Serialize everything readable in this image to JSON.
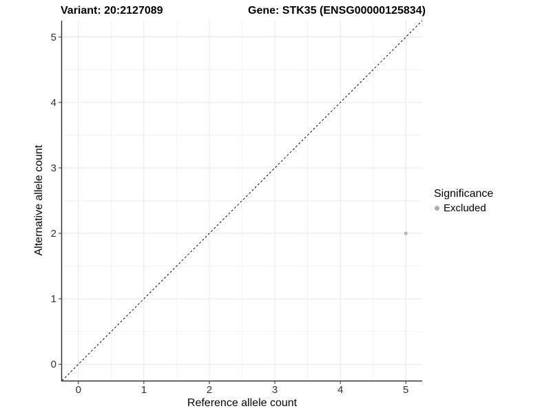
{
  "figure": {
    "title_left": "Variant: 20:2127089",
    "title_right": "Gene: STK35 (ENSG00000125834)"
  },
  "chart_data": {
    "type": "scatter",
    "title_left": "Variant: 20:2127089",
    "title_right": "Gene: STK35 (ENSG00000125834)",
    "xlabel": "Reference allele count",
    "ylabel": "Alternative allele count",
    "xlim": [
      -0.25,
      5.25
    ],
    "ylim": [
      -0.25,
      5.25
    ],
    "x_ticks": [
      0,
      1,
      2,
      3,
      4,
      5
    ],
    "y_ticks": [
      0,
      1,
      2,
      3,
      4,
      5
    ],
    "x_minor_ticks": [
      0.5,
      1.5,
      2.5,
      3.5,
      4.5
    ],
    "y_minor_ticks": [
      0.5,
      1.5,
      2.5,
      3.5,
      4.5
    ],
    "grid": "major+minor",
    "reference_line": {
      "kind": "identity y=x",
      "style": "dashed",
      "color": "#000000",
      "x1": -0.25,
      "y1": -0.25,
      "x2": 5.25,
      "y2": 5.25
    },
    "series": [
      {
        "name": "Excluded",
        "color": "#b5b5b5",
        "points": [
          {
            "x": 5,
            "y": 2
          }
        ],
        "point_radius": 2.5
      }
    ],
    "legend": {
      "title": "Significance",
      "position": "right",
      "items": [
        {
          "label": "Excluded",
          "color": "#ababab"
        }
      ]
    },
    "colors": {
      "axis_line": "#333333",
      "tick_label": "#303030",
      "grid_major": "#e6e6e6",
      "grid_minor": "#f3f3f3",
      "background": "#ffffff"
    }
  }
}
